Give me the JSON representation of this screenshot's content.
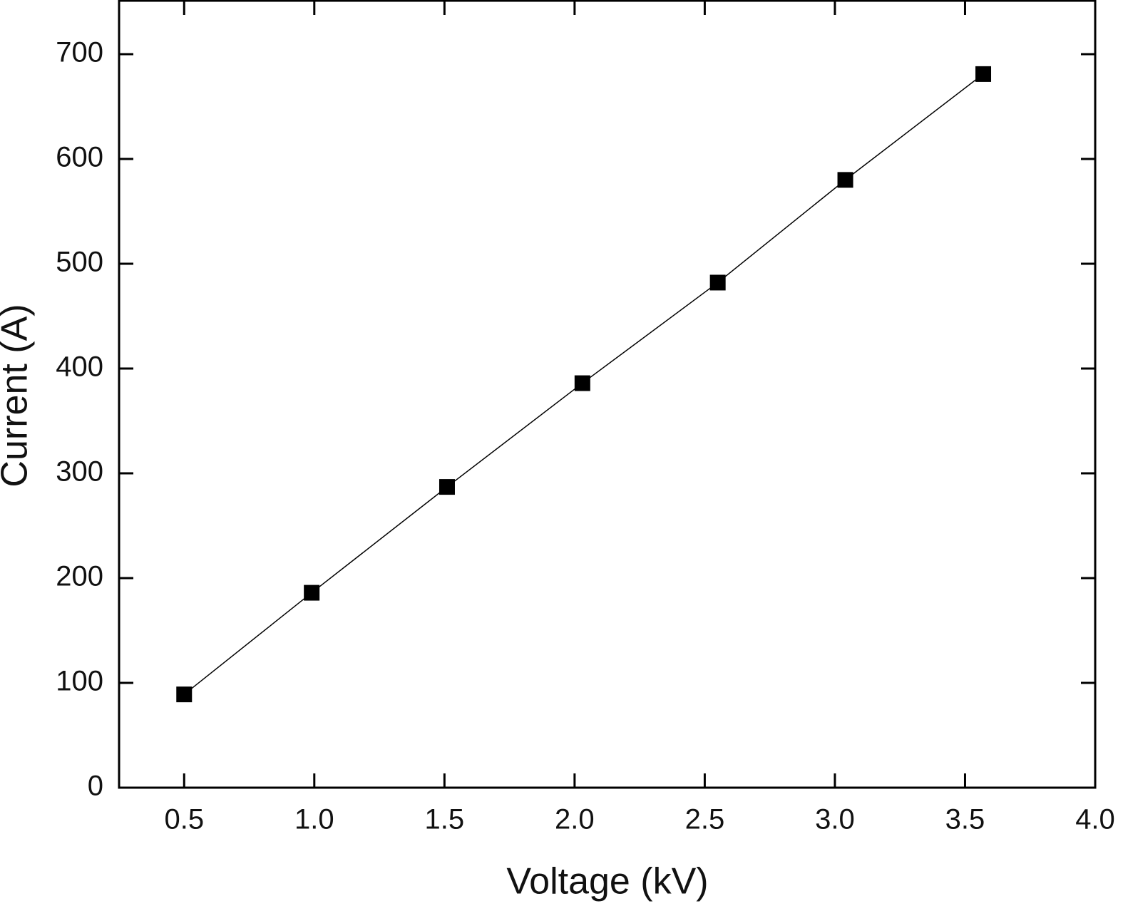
{
  "chart_data": {
    "type": "line",
    "x_label": "Voltage (kV)",
    "y_label": "Current (A)",
    "series": [
      {
        "name": "Current",
        "color": "#000000",
        "x": [
          0.5,
          0.99,
          1.51,
          2.03,
          2.55,
          3.04,
          3.57
        ],
        "values": [
          89,
          186,
          287,
          386,
          482,
          580,
          681
        ]
      }
    ],
    "xlim": [
      0.25,
      4.0
    ],
    "xticks": [
      {
        "value": 0.5,
        "label": "0.5"
      },
      {
        "value": 1.0,
        "label": "1.0"
      },
      {
        "value": 1.5,
        "label": "1.5"
      },
      {
        "value": 2.0,
        "label": "2.0"
      },
      {
        "value": 2.5,
        "label": "2.5"
      },
      {
        "value": 3.0,
        "label": "3.0"
      },
      {
        "value": 3.5,
        "label": "3.5"
      },
      {
        "value": 4.0,
        "label": "4.0"
      }
    ],
    "ylim": [
      0,
      751
    ],
    "yticks": [
      0,
      100,
      200,
      300,
      400,
      500,
      600,
      700
    ],
    "grid": false
  }
}
